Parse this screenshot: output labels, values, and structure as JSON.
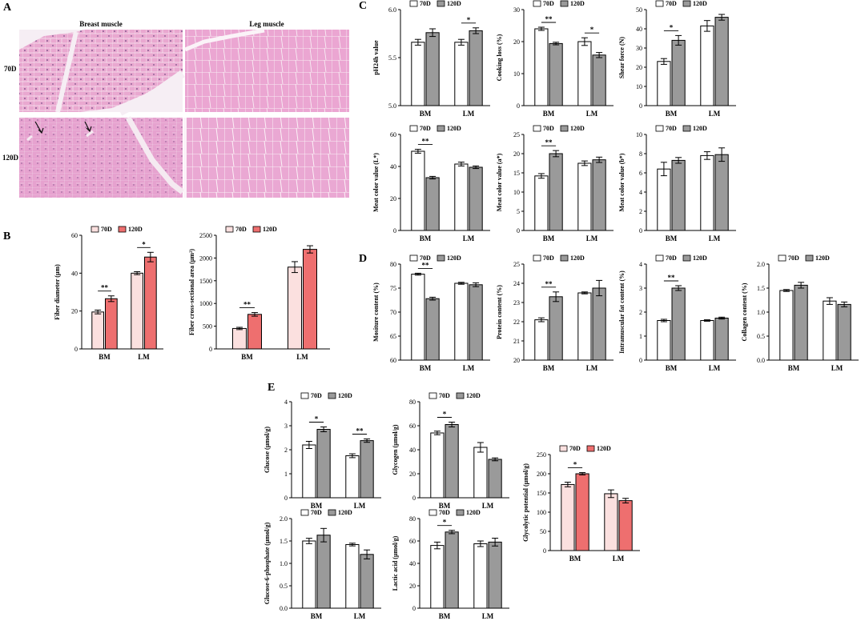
{
  "colors": {
    "bar_70d_gray": "#ffffff",
    "bar_120d_gray": "#9a9a9a",
    "bar_70d_pink": "#fbe0df",
    "bar_120d_pink": "#ee6f6f",
    "histo_bg": "#e7a6cf",
    "histo_bg2": "#eba9d2",
    "histo_gap": "#f7eef4"
  },
  "panels": {
    "A": "A",
    "B": "B",
    "C": "C",
    "D": "D",
    "E": "E"
  },
  "histology": {
    "col_labels": [
      "Breast muscle",
      "Leg muscle"
    ],
    "row_labels": [
      "70D",
      "120D"
    ]
  },
  "chart_data": [
    {
      "id": "fiber_diameter",
      "type": "bar",
      "palette": "pink",
      "ylabel": "Fiber diameter (μm)",
      "ylim": [
        0,
        60
      ],
      "yticks": [
        0,
        20,
        40,
        60
      ],
      "categories": [
        "BM",
        "LM"
      ],
      "series": [
        {
          "name": "70D",
          "values": [
            19.5,
            40
          ],
          "errors": [
            1,
            0.8
          ]
        },
        {
          "name": "120D",
          "values": [
            26.5,
            48.5
          ],
          "errors": [
            1.5,
            2.5
          ]
        }
      ],
      "significance": [
        "**",
        "*"
      ]
    },
    {
      "id": "fiber_csa",
      "type": "bar",
      "palette": "pink",
      "ylabel": "Fiber cross-sectional area (μm²)",
      "ylim": [
        0,
        2500
      ],
      "yticks": [
        0,
        500,
        1000,
        1500,
        2000,
        2500
      ],
      "categories": [
        "BM",
        "LM"
      ],
      "series": [
        {
          "name": "70D",
          "values": [
            450,
            1800
          ],
          "errors": [
            25,
            120
          ]
        },
        {
          "name": "120D",
          "values": [
            760,
            2190
          ],
          "errors": [
            40,
            80
          ]
        }
      ],
      "significance": [
        "**",
        ""
      ]
    },
    {
      "id": "ph24",
      "type": "bar",
      "palette": "gray",
      "ylabel": "pH24h value",
      "ylim": [
        5.0,
        6.0
      ],
      "yticks": [
        5.0,
        5.5,
        6.0
      ],
      "categories": [
        "BM",
        "LM"
      ],
      "series": [
        {
          "name": "70D",
          "values": [
            5.66,
            5.66
          ],
          "errors": [
            0.03,
            0.03
          ]
        },
        {
          "name": "120D",
          "values": [
            5.76,
            5.78
          ],
          "errors": [
            0.04,
            0.03
          ]
        }
      ],
      "significance": [
        "",
        "*"
      ]
    },
    {
      "id": "cooking_loss",
      "type": "bar",
      "palette": "gray",
      "ylabel": "Cooking loss (%)",
      "ylim": [
        0,
        30
      ],
      "yticks": [
        0,
        10,
        20,
        30
      ],
      "categories": [
        "BM",
        "LM"
      ],
      "series": [
        {
          "name": "70D",
          "values": [
            24,
            20
          ],
          "errors": [
            0.5,
            1.2
          ]
        },
        {
          "name": "120D",
          "values": [
            19.4,
            15.8
          ],
          "errors": [
            0.4,
            0.8
          ]
        }
      ],
      "significance": [
        "**",
        "*"
      ]
    },
    {
      "id": "shear_force",
      "type": "bar",
      "palette": "gray",
      "ylabel": "Shear force (N)",
      "ylim": [
        0,
        50
      ],
      "yticks": [
        0,
        10,
        20,
        30,
        40,
        50
      ],
      "categories": [
        "BM",
        "LM"
      ],
      "series": [
        {
          "name": "70D",
          "values": [
            23,
            41.5
          ],
          "errors": [
            1.5,
            2.8
          ]
        },
        {
          "name": "120D",
          "values": [
            34,
            46
          ],
          "errors": [
            2.5,
            1.5
          ]
        }
      ],
      "significance": [
        "*",
        ""
      ]
    },
    {
      "id": "color_L",
      "type": "bar",
      "palette": "gray",
      "ylabel": "Meat color value (L*)",
      "ylim": [
        0,
        60
      ],
      "yticks": [
        0,
        20,
        40,
        60
      ],
      "categories": [
        "BM",
        "LM"
      ],
      "series": [
        {
          "name": "70D",
          "values": [
            49.5,
            41.5
          ],
          "errors": [
            1.2,
            1.2
          ]
        },
        {
          "name": "120D",
          "values": [
            33,
            39.5
          ],
          "errors": [
            0.8,
            0.8
          ]
        }
      ],
      "significance": [
        "**",
        ""
      ]
    },
    {
      "id": "color_a",
      "type": "bar",
      "palette": "gray",
      "ylabel": "Meat color value (a*)",
      "ylim": [
        0,
        25
      ],
      "yticks": [
        0,
        5,
        10,
        15,
        20,
        25
      ],
      "categories": [
        "BM",
        "LM"
      ],
      "series": [
        {
          "name": "70D",
          "values": [
            14.2,
            17.5
          ],
          "errors": [
            0.6,
            0.6
          ]
        },
        {
          "name": "120D",
          "values": [
            20,
            18.4
          ],
          "errors": [
            0.8,
            0.7
          ]
        }
      ],
      "significance": [
        "**",
        ""
      ]
    },
    {
      "id": "color_b",
      "type": "bar",
      "palette": "gray",
      "ylabel": "Meat color value (b*)",
      "ylim": [
        0,
        10
      ],
      "yticks": [
        0,
        2,
        4,
        6,
        8,
        10
      ],
      "categories": [
        "BM",
        "LM"
      ],
      "series": [
        {
          "name": "70D",
          "values": [
            6.4,
            7.8
          ],
          "errors": [
            0.7,
            0.4
          ]
        },
        {
          "name": "120D",
          "values": [
            7.3,
            7.9
          ],
          "errors": [
            0.3,
            0.7
          ]
        }
      ],
      "significance": [
        "",
        ""
      ]
    },
    {
      "id": "moisture",
      "type": "bar",
      "palette": "gray",
      "ylabel": "Mositure content (%)",
      "ylim": [
        60,
        80
      ],
      "yticks": [
        60,
        65,
        70,
        75,
        80
      ],
      "categories": [
        "BM",
        "LM"
      ],
      "series": [
        {
          "name": "70D",
          "values": [
            77.9,
            76
          ],
          "errors": [
            0.2,
            0.2
          ]
        },
        {
          "name": "120D",
          "values": [
            72.8,
            75.7
          ],
          "errors": [
            0.3,
            0.4
          ]
        }
      ],
      "significance": [
        "**",
        ""
      ]
    },
    {
      "id": "protein",
      "type": "bar",
      "palette": "gray",
      "ylabel": "Protein content (%)",
      "ylim": [
        20,
        25
      ],
      "yticks": [
        20,
        21,
        22,
        23,
        24,
        25
      ],
      "categories": [
        "BM",
        "LM"
      ],
      "series": [
        {
          "name": "70D",
          "values": [
            22.1,
            23.5
          ],
          "errors": [
            0.1,
            0.05
          ]
        },
        {
          "name": "120D",
          "values": [
            23.3,
            23.75
          ],
          "errors": [
            0.25,
            0.4
          ]
        }
      ],
      "significance": [
        "**",
        ""
      ]
    },
    {
      "id": "imf",
      "type": "bar",
      "palette": "gray",
      "ylabel": "Intramuscular fat content (%)",
      "ylim": [
        0,
        4
      ],
      "yticks": [
        0,
        1,
        2,
        3,
        4
      ],
      "categories": [
        "BM",
        "LM"
      ],
      "series": [
        {
          "name": "70D",
          "values": [
            1.65,
            1.65
          ],
          "errors": [
            0.05,
            0.03
          ]
        },
        {
          "name": "120D",
          "values": [
            3,
            1.75
          ],
          "errors": [
            0.1,
            0.04
          ]
        }
      ],
      "significance": [
        "**",
        ""
      ]
    },
    {
      "id": "collagen",
      "type": "bar",
      "palette": "gray",
      "ylabel": "Collagen content (%)",
      "ylim": [
        0,
        2.0
      ],
      "yticks": [
        0.0,
        0.5,
        1.0,
        1.5,
        2.0
      ],
      "categories": [
        "BM",
        "LM"
      ],
      "series": [
        {
          "name": "70D",
          "values": [
            1.45,
            1.23
          ],
          "errors": [
            0.02,
            0.07
          ]
        },
        {
          "name": "120D",
          "values": [
            1.56,
            1.16
          ],
          "errors": [
            0.06,
            0.05
          ]
        }
      ],
      "significance": [
        "",
        ""
      ]
    },
    {
      "id": "glucose",
      "type": "bar",
      "palette": "gray",
      "ylabel": "Glucose (μmol/g)",
      "ylim": [
        0,
        4
      ],
      "yticks": [
        0,
        1,
        2,
        3,
        4
      ],
      "categories": [
        "BM",
        "LM"
      ],
      "series": [
        {
          "name": "70D",
          "values": [
            2.2,
            1.75
          ],
          "errors": [
            0.15,
            0.08
          ]
        },
        {
          "name": "120D",
          "values": [
            2.85,
            2.38
          ],
          "errors": [
            0.1,
            0.07
          ]
        }
      ],
      "significance": [
        "*",
        "**"
      ]
    },
    {
      "id": "glycogen",
      "type": "bar",
      "palette": "gray",
      "ylabel": "Glycogen (μmol/g)",
      "ylim": [
        0,
        80
      ],
      "yticks": [
        0,
        20,
        40,
        60,
        80
      ],
      "categories": [
        "BM",
        "LM"
      ],
      "series": [
        {
          "name": "70D",
          "values": [
            54,
            42
          ],
          "errors": [
            1.5,
            4
          ]
        },
        {
          "name": "120D",
          "values": [
            61,
            32
          ],
          "errors": [
            2,
            1.2
          ]
        }
      ],
      "significance": [
        "*",
        ""
      ]
    },
    {
      "id": "g6p",
      "type": "bar",
      "palette": "gray",
      "ylabel": "Glucose-6-phosphate (μmol/g)",
      "ylim": [
        0,
        2.0
      ],
      "yticks": [
        0.0,
        0.5,
        1.0,
        1.5,
        2.0
      ],
      "categories": [
        "BM",
        "LM"
      ],
      "series": [
        {
          "name": "70D",
          "values": [
            1.5,
            1.42
          ],
          "errors": [
            0.06,
            0.03
          ]
        },
        {
          "name": "120D",
          "values": [
            1.63,
            1.2
          ],
          "errors": [
            0.15,
            0.1
          ]
        }
      ],
      "significance": [
        "",
        ""
      ]
    },
    {
      "id": "lactic",
      "type": "bar",
      "palette": "gray",
      "ylabel": "Lactic acid (μmol/g)",
      "ylim": [
        0,
        80
      ],
      "yticks": [
        0,
        20,
        40,
        60,
        80
      ],
      "categories": [
        "BM",
        "LM"
      ],
      "series": [
        {
          "name": "70D",
          "values": [
            56,
            57.5
          ],
          "errors": [
            3,
            2.5
          ]
        },
        {
          "name": "120D",
          "values": [
            68,
            59
          ],
          "errors": [
            1.5,
            3.5
          ]
        }
      ],
      "significance": [
        "*",
        ""
      ]
    },
    {
      "id": "glycolytic",
      "type": "bar",
      "palette": "pink",
      "ylabel": "Glycolytic potential (μmol/g)",
      "ylim": [
        0,
        250
      ],
      "yticks": [
        0,
        50,
        100,
        150,
        200,
        250
      ],
      "categories": [
        "BM",
        "LM"
      ],
      "series": [
        {
          "name": "70D",
          "values": [
            172,
            148
          ],
          "errors": [
            6,
            10
          ]
        },
        {
          "name": "120D",
          "values": [
            200,
            130
          ],
          "errors": [
            3,
            6
          ]
        }
      ],
      "significance": [
        "*",
        ""
      ]
    }
  ]
}
